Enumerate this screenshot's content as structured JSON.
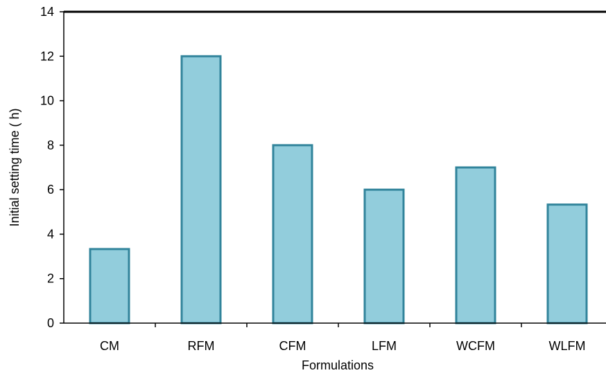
{
  "chart_data": {
    "type": "bar",
    "title": "",
    "xlabel": "Formulations",
    "ylabel": "Initial setting time  ( h)",
    "categories": [
      "CM",
      "RFM",
      "CFM",
      "LFM",
      "WCFM",
      "WLFM"
    ],
    "values": [
      3.33,
      12,
      8,
      6,
      7,
      5.33
    ],
    "ylim": [
      0,
      14
    ],
    "yticks": [
      "0",
      "2",
      "4",
      "6",
      "8",
      "10",
      "12",
      "14"
    ],
    "grid": false,
    "legend": "none",
    "colors": {
      "bar_fill": "#92cddc",
      "bar_stroke": "#31849b",
      "axis": "#000000"
    }
  }
}
